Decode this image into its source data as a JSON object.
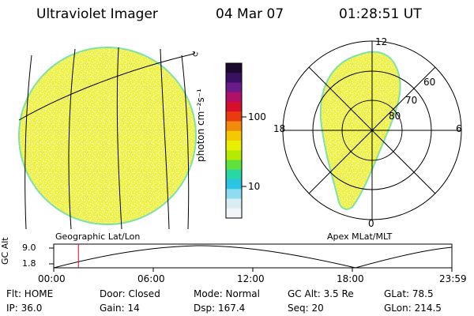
{
  "header": {
    "instrument": "Ultraviolet Imager",
    "date": "04 Mar 07",
    "time": "01:28:51 UT"
  },
  "left_panel": {
    "caption": "Geographic Lat/Lon",
    "edge_mark": "↻"
  },
  "right_panel": {
    "caption": "Apex MLat/MLT",
    "mlt_labels": {
      "top": "12",
      "left": "18",
      "right": "6",
      "bottom": "0"
    },
    "lat_labels": [
      "60",
      "70",
      "80"
    ]
  },
  "colorbar": {
    "unit_label": "photon cm⁻²s⁻¹",
    "ticks": [
      "100",
      "10"
    ],
    "colors": [
      "#1a0b2e",
      "#3a1060",
      "#6a1a8a",
      "#b0106a",
      "#d6102a",
      "#ea3a10",
      "#f28a0c",
      "#f6c800",
      "#e8f000",
      "#b6ea00",
      "#5fe03a",
      "#29d6a6",
      "#2ac4e4",
      "#8fdcf0",
      "#d9eef4",
      "#f2f6f8"
    ]
  },
  "timeline": {
    "y_axis_label": "GC Alt",
    "y_ticks": [
      "9.0",
      "1.8"
    ],
    "x_ticks": [
      "00:00",
      "06:00",
      "12:00",
      "18:00",
      "23:59"
    ],
    "current_time_marker_fraction": 0.062,
    "marker_color": "#c8141e"
  },
  "status": {
    "flt": "Flt: HOME",
    "ip": "IP: 36.0",
    "door": "Door: Closed",
    "gain": "Gain: 14",
    "mode": "Mode: Normal",
    "dsp": "Dsp:  167.4",
    "gcalt": "GC Alt: 3.5 Re",
    "seq": "Seq: 20",
    "glat": "GLat:  78.5",
    "glon": "GLon: 214.5"
  },
  "image_colors": {
    "fill": "#eef24a",
    "edge": "#7fe0a8",
    "speckle": "#ffffff"
  }
}
